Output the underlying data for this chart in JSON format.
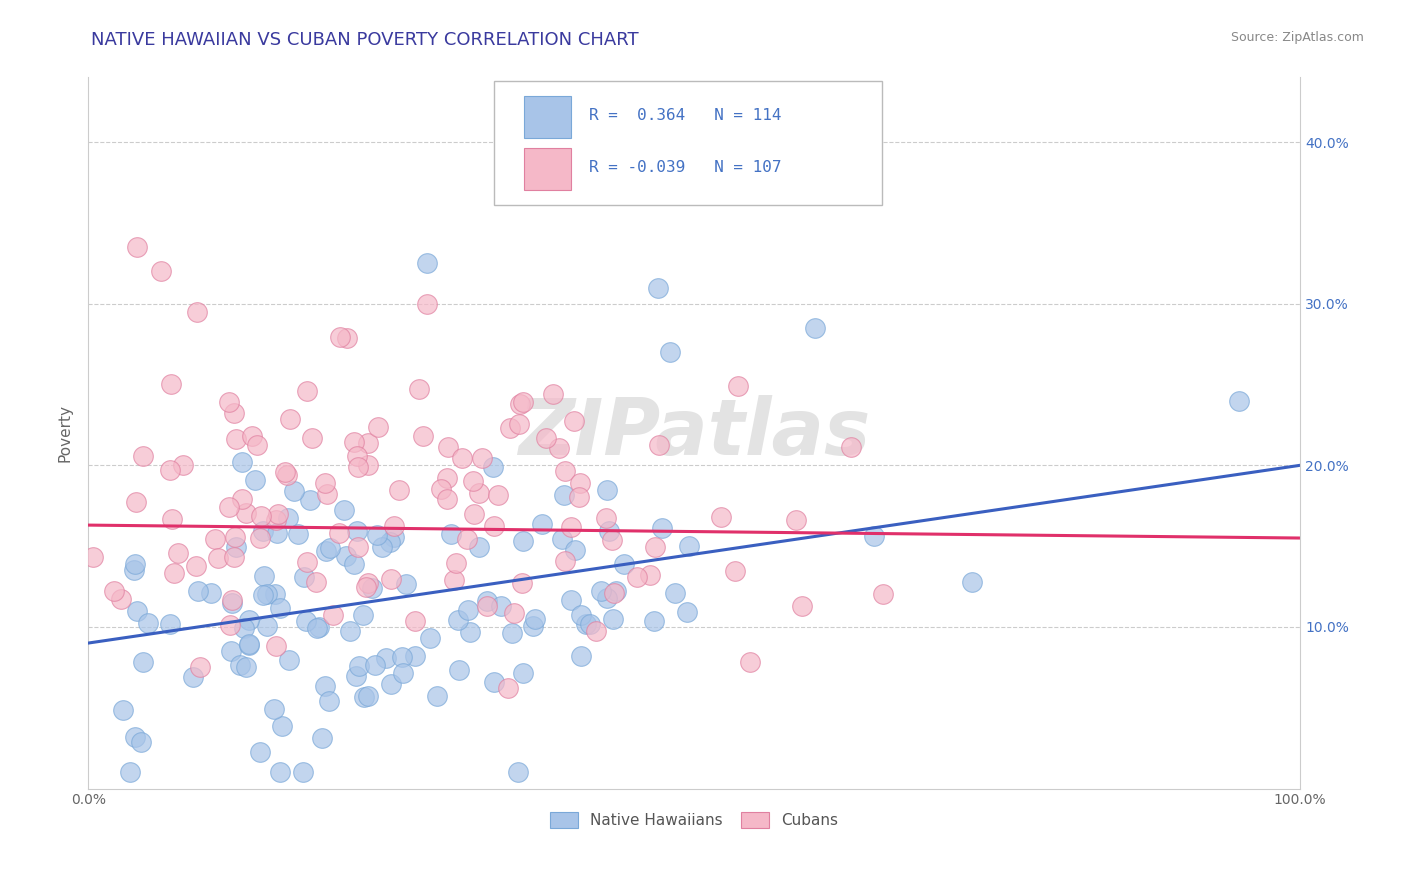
{
  "title": "NATIVE HAWAIIAN VS CUBAN POVERTY CORRELATION CHART",
  "source": "Source: ZipAtlas.com",
  "ylabel": "Poverty",
  "xlim": [
    0.0,
    1.0
  ],
  "ylim": [
    0.0,
    0.44
  ],
  "xticks": [
    0.0,
    0.1,
    0.2,
    0.3,
    0.4,
    0.5,
    0.6,
    0.7,
    0.8,
    0.9,
    1.0
  ],
  "yticks": [
    0.1,
    0.2,
    0.3,
    0.4
  ],
  "xtick_labels": [
    "0.0%",
    "",
    "",
    "",
    "",
    "",
    "",
    "",
    "",
    "",
    "100.0%"
  ],
  "ytick_labels_right": [
    "10.0%",
    "20.0%",
    "30.0%",
    "40.0%"
  ],
  "blue_color": "#a8c4e8",
  "blue_edge": "#7aa8d8",
  "pink_color": "#f5b8c8",
  "pink_edge": "#e080a0",
  "line_blue": "#3a5fc0",
  "line_pink": "#e0306a",
  "legend_label_blue": "Native Hawaiians",
  "legend_label_pink": "Cubans",
  "R_blue": 0.364,
  "N_blue": 114,
  "R_pink": -0.039,
  "N_pink": 107,
  "watermark": "ZIPatlas",
  "title_color": "#3a3a9e",
  "source_color": "#888888",
  "tick_color": "#4472c4",
  "grid_color": "#cccccc",
  "blue_line_start_y": 0.09,
  "blue_line_end_y": 0.2,
  "pink_line_start_y": 0.163,
  "pink_line_end_y": 0.155
}
